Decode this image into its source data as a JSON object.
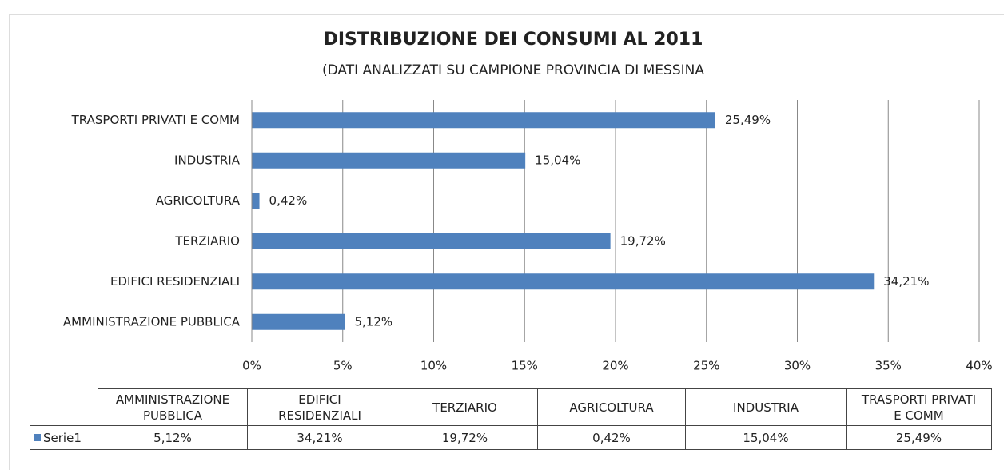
{
  "chart_data": {
    "type": "bar",
    "orientation": "horizontal",
    "title": "DISTRIBUZIONE DEI CONSUMI AL 2011",
    "subtitle": "(DATI ANALIZZATI SU CAMPIONE PROVINCIA DI MESSINA",
    "categories": [
      "AMMINISTRAZIONE PUBBLICA",
      "EDIFICI RESIDENZIALI",
      "TERZIARIO",
      "AGRICOLTURA",
      "INDUSTRIA",
      "TRASPORTI PRIVATI E COMM"
    ],
    "series": [
      {
        "name": "Serie1",
        "color": "#4f81bd",
        "values": [
          5.12,
          34.21,
          19.72,
          0.42,
          15.04,
          25.49
        ],
        "value_labels": [
          "5,12%",
          "34,21%",
          "19,72%",
          "0,42%",
          "15,04%",
          "25,49%"
        ]
      }
    ],
    "xlim": [
      0,
      40
    ],
    "xticks": [
      {
        "value": 0,
        "label": "0%"
      },
      {
        "value": 5,
        "label": "5%"
      },
      {
        "value": 10,
        "label": "10%"
      },
      {
        "value": 15,
        "label": "15%"
      },
      {
        "value": 20,
        "label": "20%"
      },
      {
        "value": 25,
        "label": "25%"
      },
      {
        "value": 30,
        "label": "30%"
      },
      {
        "value": 35,
        "label": "35%"
      },
      {
        "value": 40,
        "label": "40%"
      }
    ],
    "grid": true,
    "data_table": true
  }
}
